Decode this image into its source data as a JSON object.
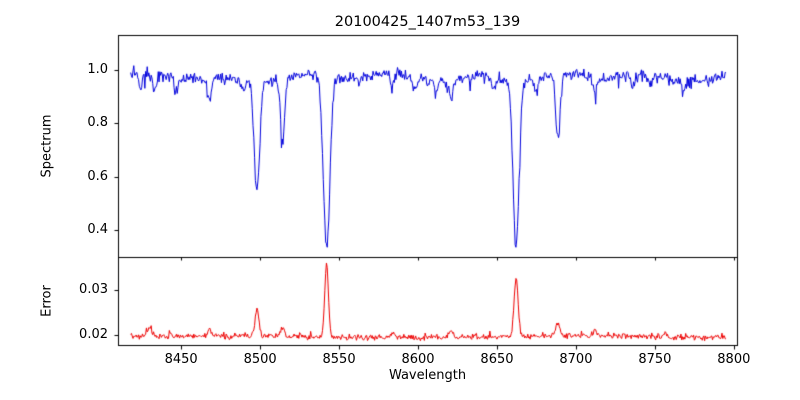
{
  "figure": {
    "title": "20100425_1407m53_139",
    "xlabel": "Wavelength",
    "background": "#ffffff",
    "axis_color": "#000000"
  },
  "xaxis": {
    "values": [
      8450,
      8500,
      8550,
      8600,
      8650,
      8700,
      8750,
      8800
    ],
    "labels": [
      "8450",
      "8500",
      "8550",
      "8600",
      "8650",
      "8700",
      "8750",
      "8800"
    ]
  },
  "chart_data": [
    {
      "type": "line",
      "series_name": "spectrum",
      "title": "20100425_1407m53_139",
      "ylabel": "Spectrum",
      "color": "#0000dd",
      "x_start": 8418,
      "x_end": 8795,
      "x_step": 0.5,
      "xlim": [
        8410,
        8802
      ],
      "ylim": [
        0.3,
        1.13
      ],
      "yticks": [
        1.0,
        0.8,
        0.6,
        0.4
      ],
      "yticklabels": [
        "1.0",
        "0.8",
        "0.6",
        "0.4"
      ],
      "continuum": 0.972,
      "noise_sigma": 0.018,
      "seed": 1337,
      "absorption_lines": [
        {
          "center": 8498.0,
          "depth": 0.42,
          "width": 1.7
        },
        {
          "center": 8514.2,
          "depth": 0.24,
          "width": 1.3
        },
        {
          "center": 8542.1,
          "depth": 0.645,
          "width": 2.1
        },
        {
          "center": 8662.1,
          "depth": 0.615,
          "width": 1.9
        },
        {
          "center": 8688.6,
          "depth": 0.245,
          "width": 1.4
        }
      ],
      "weak_lines": [
        {
          "center": 8424.0,
          "depth": 0.05,
          "width": 1.2
        },
        {
          "center": 8433.0,
          "depth": 0.06,
          "width": 1.1
        },
        {
          "center": 8447.0,
          "depth": 0.045,
          "width": 1.0
        },
        {
          "center": 8468.0,
          "depth": 0.09,
          "width": 1.3
        },
        {
          "center": 8489.0,
          "depth": 0.05,
          "width": 1.0
        },
        {
          "center": 8583.5,
          "depth": 0.055,
          "width": 1.1
        },
        {
          "center": 8598.0,
          "depth": 0.05,
          "width": 1.1
        },
        {
          "center": 8611.0,
          "depth": 0.045,
          "width": 1.0
        },
        {
          "center": 8621.0,
          "depth": 0.07,
          "width": 1.2
        },
        {
          "center": 8648.0,
          "depth": 0.05,
          "width": 1.0
        },
        {
          "center": 8674.5,
          "depth": 0.05,
          "width": 1.0
        },
        {
          "center": 8712.0,
          "depth": 0.06,
          "width": 1.2
        },
        {
          "center": 8736.0,
          "depth": 0.045,
          "width": 1.0
        },
        {
          "center": 8747.0,
          "depth": 0.05,
          "width": 1.0
        },
        {
          "center": 8768.0,
          "depth": 0.045,
          "width": 1.0
        }
      ]
    },
    {
      "type": "line",
      "series_name": "error",
      "ylabel": "Error",
      "color": "#ee0000",
      "baseline": 0.0196,
      "noise_sigma": 0.0006,
      "seed": 2024,
      "ylim": [
        0.0178,
        0.0372
      ],
      "yticks": [
        0.03,
        0.02
      ],
      "yticklabels": [
        "0.03",
        "0.02"
      ],
      "peaks": [
        {
          "center": 8430.0,
          "height": 0.0021,
          "width": 1.6
        },
        {
          "center": 8468.0,
          "height": 0.0014,
          "width": 1.4
        },
        {
          "center": 8498.0,
          "height": 0.0058,
          "width": 1.3
        },
        {
          "center": 8514.2,
          "height": 0.0019,
          "width": 1.2
        },
        {
          "center": 8542.1,
          "height": 0.0162,
          "width": 1.15
        },
        {
          "center": 8584.0,
          "height": 0.001,
          "width": 1.2
        },
        {
          "center": 8621.0,
          "height": 0.0012,
          "width": 1.2
        },
        {
          "center": 8662.1,
          "height": 0.0131,
          "width": 1.2
        },
        {
          "center": 8688.6,
          "height": 0.0027,
          "width": 1.3
        },
        {
          "center": 8712.0,
          "height": 0.001,
          "width": 1.2
        },
        {
          "center": 8756.0,
          "height": 0.0009,
          "width": 1.2
        }
      ]
    }
  ]
}
